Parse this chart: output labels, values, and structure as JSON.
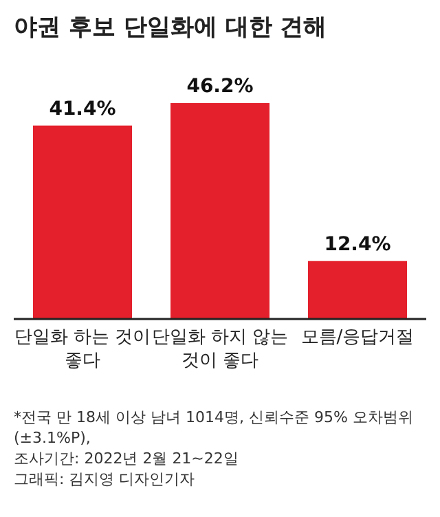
{
  "chart_data": {
    "type": "bar",
    "title": "야권 후보 단일화에 대한 견해",
    "categories": [
      "단일화 하는 것이 좋다",
      "단일화 하지 않는 것이 좋다",
      "모름/응답거절"
    ],
    "values": [
      41.4,
      46.2,
      12.4
    ],
    "value_labels": [
      "41.4%",
      "46.2%",
      "12.4%"
    ],
    "color": "#e3202b",
    "annotations": [
      "*전국 만 18세 이상 남녀 1014명, 신뢰수준 95% 오차범위(±3.1%P),",
      "조사기간: 2022년 2월 21~22일",
      "그래픽: 김지영 디자인기자"
    ]
  }
}
